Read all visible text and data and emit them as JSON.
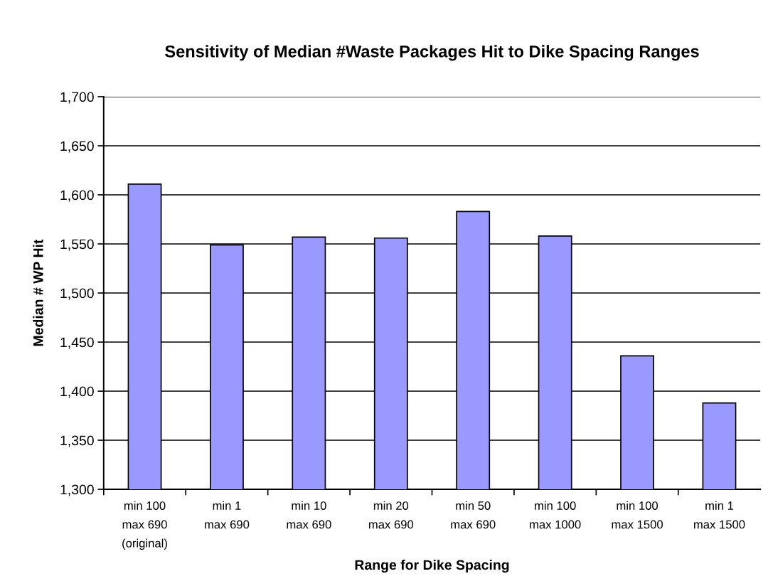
{
  "chart_data": {
    "type": "bar",
    "title": "Sensitivity of Median #Waste Packages Hit to Dike Spacing Ranges",
    "xlabel": "Range for Dike Spacing",
    "ylabel": "Median # WP Hit",
    "categories": [
      "min 100\nmax 690\n(original)",
      "min 1\nmax 690",
      "min 10\nmax 690",
      "min 20\nmax 690",
      "min 50\nmax 690",
      "min 100\nmax 1000",
      "min 100\nmax 1500",
      "min 1\nmax 1500"
    ],
    "values": [
      1611,
      1549,
      1557,
      1556,
      1583,
      1558,
      1436,
      1388
    ],
    "color": "#9999ff",
    "ylim": [
      1300,
      1700
    ],
    "yticks": [
      {
        "value": 1300,
        "label": "1,300"
      },
      {
        "value": 1350,
        "label": "1,350"
      },
      {
        "value": 1400,
        "label": "1,400"
      },
      {
        "value": 1450,
        "label": "1,450"
      },
      {
        "value": 1500,
        "label": "1,500"
      },
      {
        "value": 1550,
        "label": "1,550"
      },
      {
        "value": 1600,
        "label": "1,600"
      },
      {
        "value": 1650,
        "label": "1,650"
      },
      {
        "value": 1700,
        "label": "1,700"
      }
    ],
    "grid": "y",
    "legend": false
  }
}
